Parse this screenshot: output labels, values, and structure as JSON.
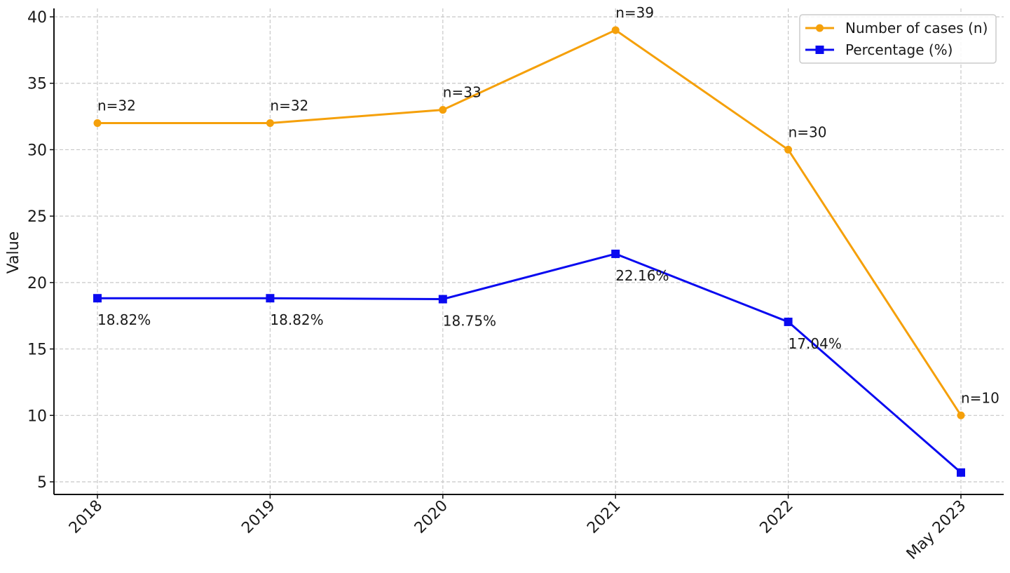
{
  "chart_data": {
    "type": "line",
    "title": "",
    "xlabel": "",
    "ylabel": "Value",
    "categories": [
      "2018",
      "2019",
      "2020",
      "2021",
      "2022",
      "May 2023"
    ],
    "ylim": [
      4.05,
      40.6
    ],
    "yticks": [
      5,
      10,
      15,
      20,
      25,
      30,
      35,
      40
    ],
    "grid": true,
    "legend_position": "upper right",
    "series": [
      {
        "name": "Number of cases (n)",
        "color": "#f5a00a",
        "marker": "circle",
        "values": [
          32,
          32,
          33,
          39,
          30,
          10
        ],
        "labels": [
          "n=32",
          "n=32",
          "n=33",
          "n=39",
          "n=30",
          "n=10"
        ]
      },
      {
        "name": "Percentage (%)",
        "color": "#0a0af0",
        "marker": "square",
        "values": [
          18.82,
          18.82,
          18.75,
          22.16,
          17.04,
          5.7
        ],
        "labels": [
          "18.82%",
          "18.82%",
          "18.75%",
          "22.16%",
          "17.04%",
          ""
        ]
      }
    ]
  }
}
